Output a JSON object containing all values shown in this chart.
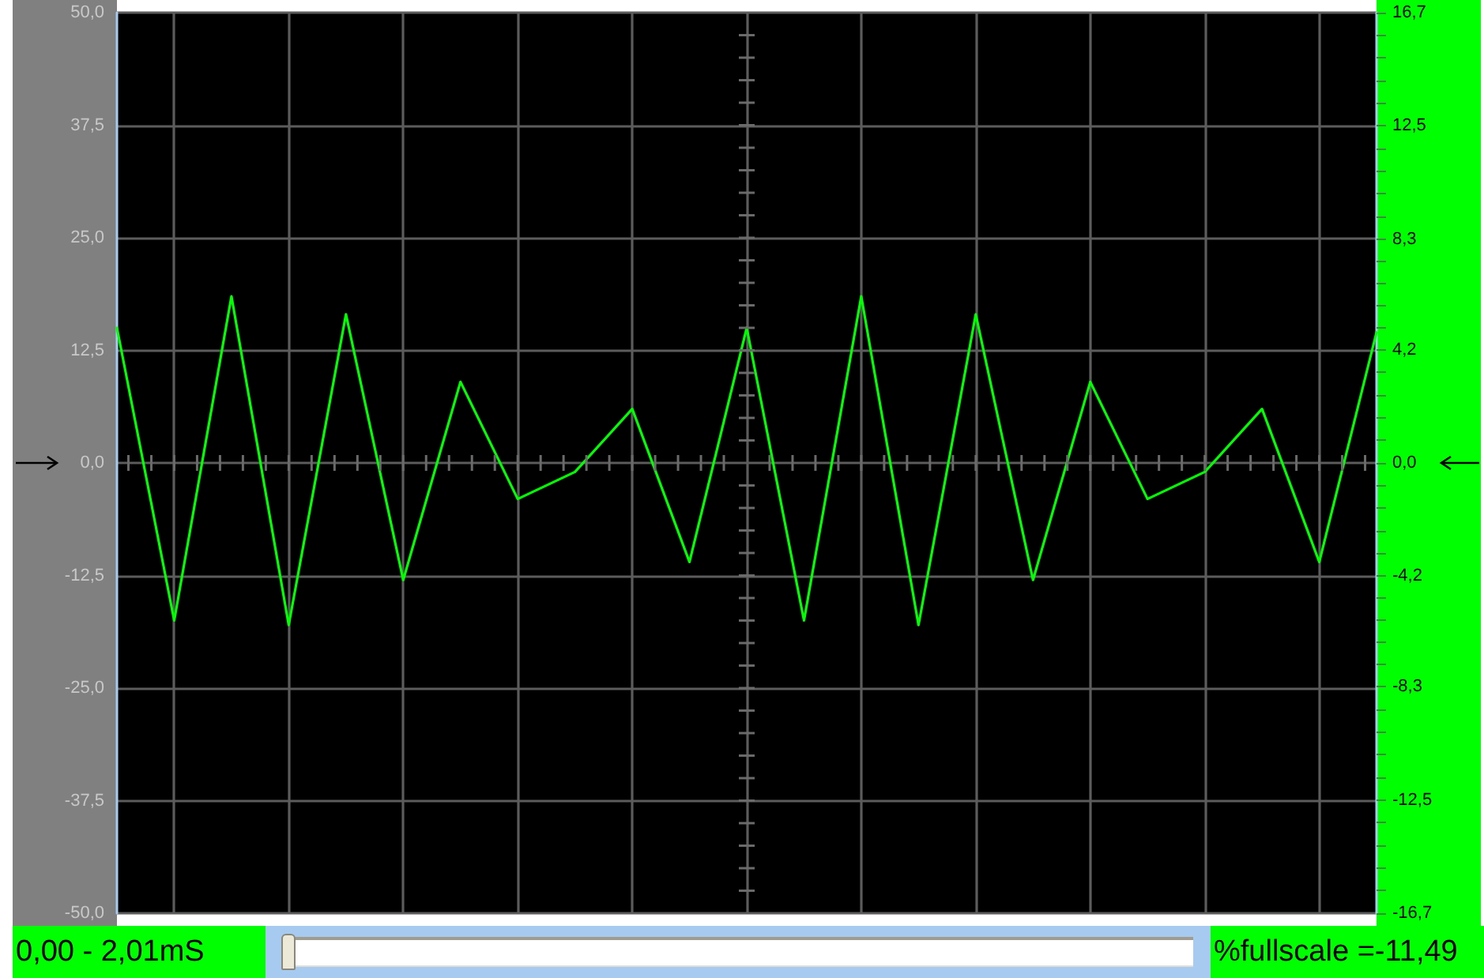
{
  "chart_data": {
    "type": "line",
    "categories": [
      null,
      null,
      null,
      null,
      null,
      null,
      null,
      null,
      null,
      null,
      null,
      null,
      null,
      null,
      null,
      null,
      null,
      null,
      null,
      null,
      null,
      null,
      null
    ],
    "values": [
      15,
      -17.5,
      18.5,
      -18,
      16.5,
      -13,
      9,
      -4,
      -1,
      6,
      -11,
      15,
      -17.5,
      18.5,
      -18,
      16.5,
      -13,
      9,
      -4,
      -1,
      6,
      -11,
      14.5
    ],
    "color": "#00ff00",
    "ylim": [
      -50,
      50
    ],
    "yticks": [
      {
        "value": 50,
        "label": "50,0"
      },
      {
        "value": 37.5,
        "label": "37,5"
      },
      {
        "value": 25,
        "label": "25,0"
      },
      {
        "value": 12.5,
        "label": "12,5"
      },
      {
        "value": 0,
        "label": "0,0"
      },
      {
        "value": -12.5,
        "label": "-12,5"
      },
      {
        "value": -25,
        "label": "-25,0"
      },
      {
        "value": -37.5,
        "label": "-37,5"
      },
      {
        "value": -50,
        "label": "-50,0"
      }
    ],
    "y2lim": [
      -16.7,
      16.7
    ],
    "y2ticks": [
      {
        "value": 16.7,
        "label": "16,7"
      },
      {
        "value": 12.5,
        "label": "12,5"
      },
      {
        "value": 8.3,
        "label": "8,3"
      },
      {
        "value": 4.2,
        "label": "4,2"
      },
      {
        "value": 0,
        "label": "0,0"
      },
      {
        "value": -4.2,
        "label": "-4,2"
      },
      {
        "value": -8.3,
        "label": "-8,3"
      },
      {
        "value": -12.5,
        "label": "-12,5"
      },
      {
        "value": -16.7,
        "label": "-16,7"
      }
    ],
    "grid": true,
    "annotations": [
      "0,00 - 2,01mS",
      "%fullscale =-11,49"
    ]
  }
}
